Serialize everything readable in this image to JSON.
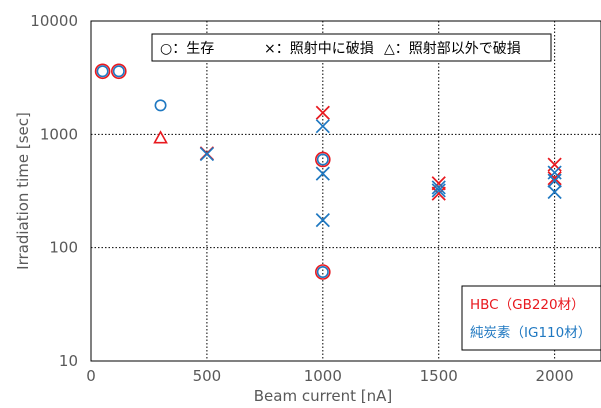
{
  "chart_data": {
    "type": "scatter",
    "xlabel": "Beam current [nA]",
    "ylabel": "Irradiation time [sec]",
    "xlim": [
      0,
      2200
    ],
    "ylim": [
      10,
      10000
    ],
    "y_scale": "log",
    "grid": "major gridlines, dotted, both axes",
    "x_ticks": [
      "0",
      "500",
      "1000",
      "1500",
      "2000"
    ],
    "y_ticks": [
      "10",
      "100",
      "1000",
      "10000"
    ],
    "marker_legend": {
      "circle": "○：生存",
      "cross": "×：照射中に破損",
      "triangle": "△：照射部以外で破損"
    },
    "series": [
      {
        "name": "HBC（GB220材）",
        "color": "#e8191f",
        "points": [
          {
            "x": 50,
            "y": 3600,
            "marker": "circle"
          },
          {
            "x": 120,
            "y": 3600,
            "marker": "circle"
          },
          {
            "x": 300,
            "y": 930,
            "marker": "triangle"
          },
          {
            "x": 500,
            "y": 680,
            "marker": "cross"
          },
          {
            "x": 1000,
            "y": 1550,
            "marker": "cross"
          },
          {
            "x": 1000,
            "y": 600,
            "marker": "circle"
          },
          {
            "x": 1000,
            "y": 61,
            "marker": "circle"
          },
          {
            "x": 1500,
            "y": 370,
            "marker": "cross"
          },
          {
            "x": 1500,
            "y": 300,
            "marker": "cross"
          },
          {
            "x": 2000,
            "y": 540,
            "marker": "cross"
          },
          {
            "x": 2000,
            "y": 410,
            "marker": "cross"
          }
        ]
      },
      {
        "name": "純炭素（IG110材）",
        "color": "#1f78c1",
        "points": [
          {
            "x": 50,
            "y": 3600,
            "marker": "circle"
          },
          {
            "x": 120,
            "y": 3600,
            "marker": "circle"
          },
          {
            "x": 300,
            "y": 1800,
            "marker": "circle"
          },
          {
            "x": 500,
            "y": 670,
            "marker": "cross"
          },
          {
            "x": 1000,
            "y": 1180,
            "marker": "cross"
          },
          {
            "x": 1000,
            "y": 600,
            "marker": "circle"
          },
          {
            "x": 1000,
            "y": 450,
            "marker": "cross"
          },
          {
            "x": 1000,
            "y": 175,
            "marker": "cross"
          },
          {
            "x": 1000,
            "y": 61,
            "marker": "circle"
          },
          {
            "x": 1500,
            "y": 340,
            "marker": "cross"
          },
          {
            "x": 1500,
            "y": 320,
            "marker": "cross"
          },
          {
            "x": 2000,
            "y": 460,
            "marker": "cross"
          },
          {
            "x": 2000,
            "y": 390,
            "marker": "cross"
          },
          {
            "x": 2000,
            "y": 310,
            "marker": "cross"
          }
        ]
      }
    ]
  }
}
